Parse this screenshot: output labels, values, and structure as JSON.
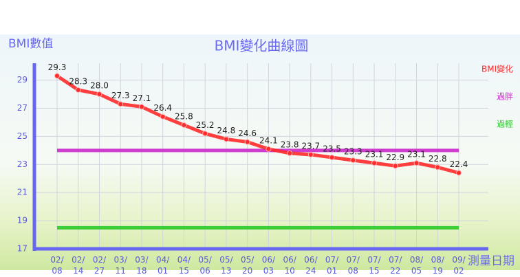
{
  "chart_data": {
    "type": "line",
    "title": "BMI變化曲線圖",
    "y_label": "BMI數值",
    "x_label": "測量日期",
    "categories": [
      "02/08",
      "02/14",
      "02/27",
      "03/11",
      "03/18",
      "04/01",
      "04/15",
      "05/06",
      "05/13",
      "05/20",
      "06/03",
      "06/10",
      "06/24",
      "07/01",
      "07/08",
      "07/15",
      "07/22",
      "08/05",
      "08/19",
      "09/02"
    ],
    "series": [
      {
        "name": "BMI變化",
        "color": "#ff2a2a",
        "values": [
          29.3,
          28.3,
          28.0,
          27.3,
          27.1,
          26.4,
          25.8,
          25.2,
          24.8,
          24.6,
          24.1,
          23.8,
          23.7,
          23.5,
          23.3,
          23.1,
          22.9,
          23.1,
          22.8,
          22.4
        ],
        "value_labels": [
          "29.3",
          "28.3",
          "28.0",
          "27.3",
          "27.1",
          "26.4",
          "25.8",
          "25.2",
          "24.8",
          "24.6",
          "24.1",
          "23.8",
          "23.7",
          "23.5",
          "23.3",
          "23.1",
          "22.9",
          "23.1",
          "22.8",
          "22.4"
        ]
      },
      {
        "name": "過胖",
        "color": "#cc33cc",
        "values": [
          24,
          24,
          24,
          24,
          24,
          24,
          24,
          24,
          24,
          24,
          24,
          24,
          24,
          24,
          24,
          24,
          24,
          24,
          24,
          24
        ]
      },
      {
        "name": "過輕",
        "color": "#33cc33",
        "values": [
          18.5,
          18.5,
          18.5,
          18.5,
          18.5,
          18.5,
          18.5,
          18.5,
          18.5,
          18.5,
          18.5,
          18.5,
          18.5,
          18.5,
          18.5,
          18.5,
          18.5,
          18.5,
          18.5,
          18.5
        ]
      }
    ],
    "ylim": [
      17,
      30.2
    ],
    "yticks": [
      17,
      19,
      21,
      23,
      25,
      27,
      29
    ],
    "grid": true
  }
}
